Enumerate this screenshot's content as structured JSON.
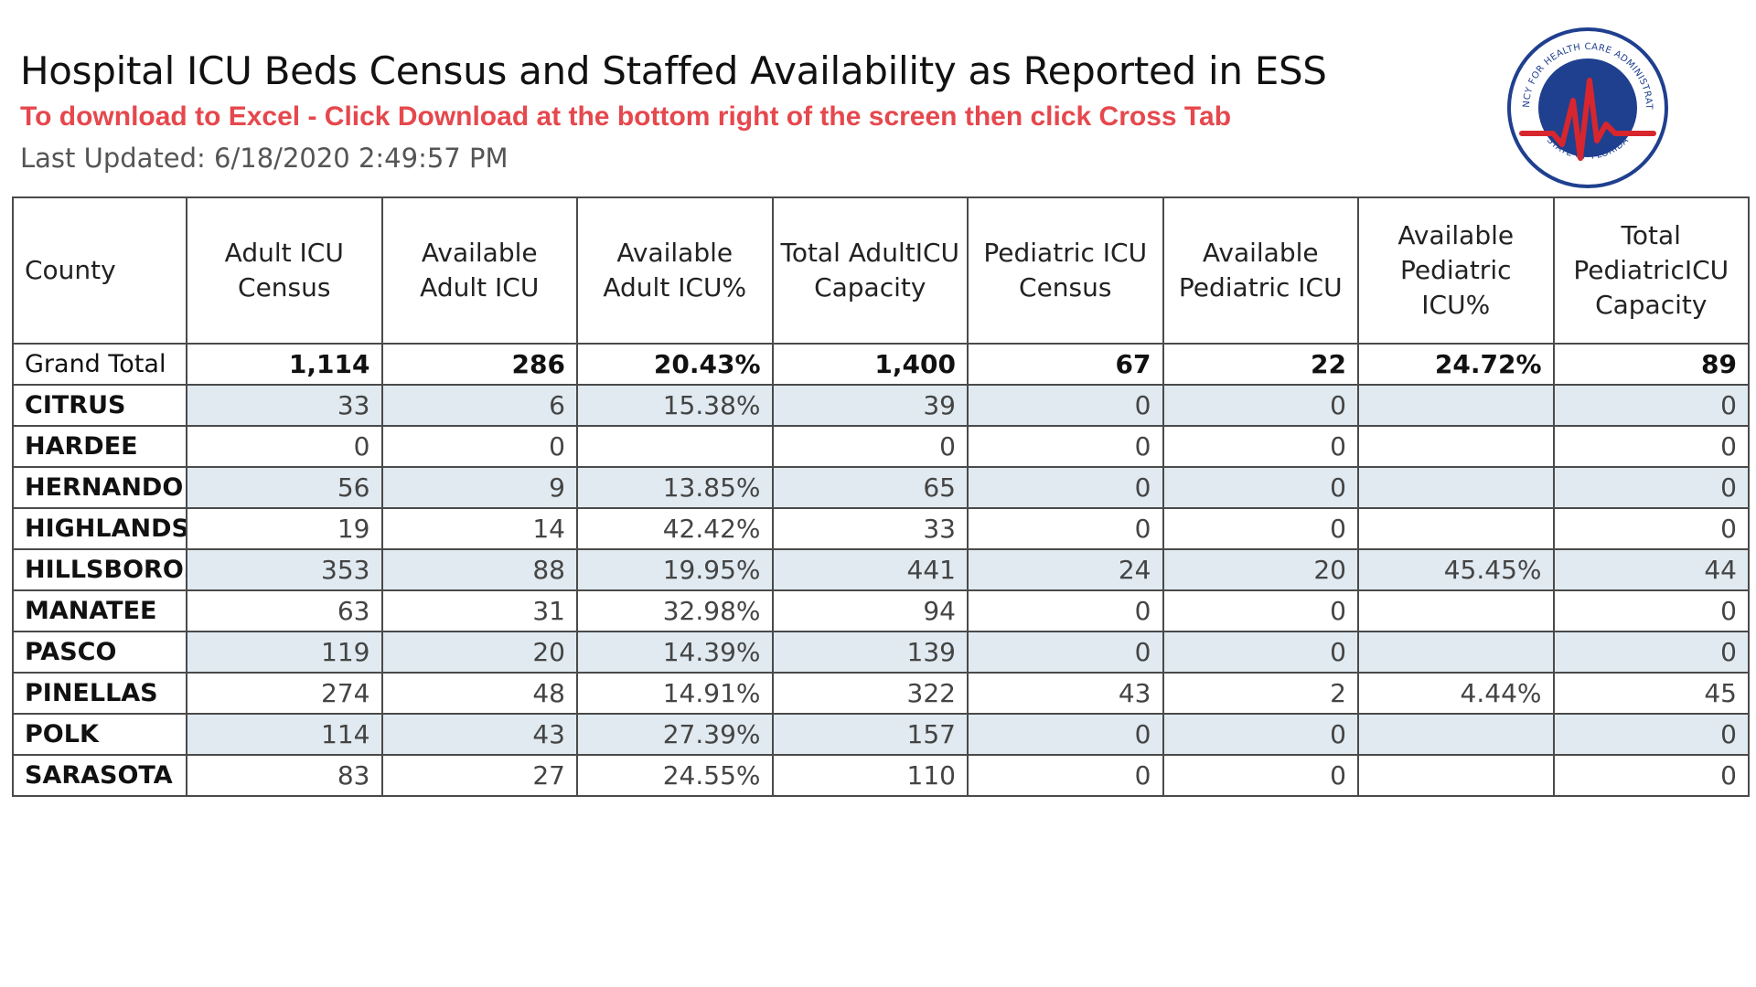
{
  "header": {
    "title": "Hospital ICU Beds Census and Staffed Availability as Reported in ESS",
    "instruction": "To download to Excel - Click Download at the bottom right of the screen then click Cross Tab",
    "last_updated": "Last Updated: 6/18/2020 2:49:57 PM"
  },
  "logo": {
    "text_top": "AGENCY FOR HEALTH CARE ADMINISTRATION",
    "text_bottom": "STATE OF FLORIDA"
  },
  "colors": {
    "instruction": "#e5484d",
    "logo_blue": "#1f3f8f",
    "logo_red": "#d8262e",
    "row_alt": "#e0eaf0"
  },
  "table": {
    "columns": [
      "County",
      "Adult ICU Census",
      "Available Adult ICU",
      "Available Adult ICU%",
      "Total AdultICU Capacity",
      "Pediatric ICU Census",
      "Available Pediatric ICU",
      "Available Pediatric ICU%",
      "Total PediatricICU Capacity"
    ],
    "rows": [
      [
        "Grand Total",
        "1,114",
        "286",
        "20.43%",
        "1,400",
        "67",
        "22",
        "24.72%",
        "89"
      ],
      [
        "CITRUS",
        "33",
        "6",
        "15.38%",
        "39",
        "0",
        "0",
        "",
        "0"
      ],
      [
        "HARDEE",
        "0",
        "0",
        "",
        "0",
        "0",
        "0",
        "",
        "0"
      ],
      [
        "HERNANDO",
        "56",
        "9",
        "13.85%",
        "65",
        "0",
        "0",
        "",
        "0"
      ],
      [
        "HIGHLANDS",
        "19",
        "14",
        "42.42%",
        "33",
        "0",
        "0",
        "",
        "0"
      ],
      [
        "HILLSBORO..",
        "353",
        "88",
        "19.95%",
        "441",
        "24",
        "20",
        "45.45%",
        "44"
      ],
      [
        "MANATEE",
        "63",
        "31",
        "32.98%",
        "94",
        "0",
        "0",
        "",
        "0"
      ],
      [
        "PASCO",
        "119",
        "20",
        "14.39%",
        "139",
        "0",
        "0",
        "",
        "0"
      ],
      [
        "PINELLAS",
        "274",
        "48",
        "14.91%",
        "322",
        "43",
        "2",
        "4.44%",
        "45"
      ],
      [
        "POLK",
        "114",
        "43",
        "27.39%",
        "157",
        "0",
        "0",
        "",
        "0"
      ],
      [
        "SARASOTA",
        "83",
        "27",
        "24.55%",
        "110",
        "0",
        "0",
        "",
        "0"
      ]
    ]
  }
}
